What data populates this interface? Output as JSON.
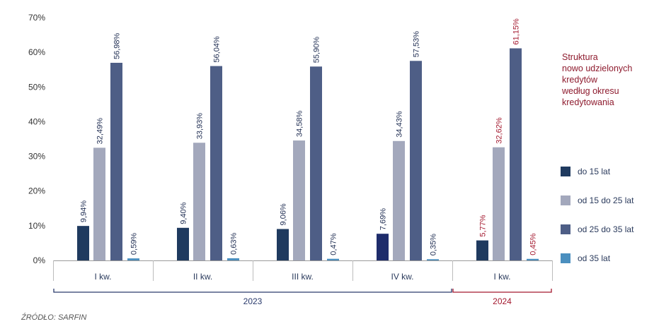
{
  "chart_data": {
    "type": "bar",
    "title_lines": [
      "Struktura",
      "nowo udzielonych",
      "kredytów",
      "według okresu",
      "kredytowania"
    ],
    "categories": [
      "I kw.",
      "II kw.",
      "III kw.",
      "IV kw.",
      "I kw."
    ],
    "year_groups": [
      {
        "label": "2023",
        "from": 0,
        "to": 3,
        "color": "#2a3a6c"
      },
      {
        "label": "2024",
        "from": 4,
        "to": 4,
        "color": "#a3182e"
      }
    ],
    "ylim": [
      0,
      70
    ],
    "yticks": [
      0,
      10,
      20,
      30,
      40,
      50,
      60,
      70
    ],
    "ytick_labels": [
      "0%",
      "10%",
      "20%",
      "30%",
      "40%",
      "50%",
      "60%",
      "70%"
    ],
    "grid": false,
    "legend_position": "right",
    "series": [
      {
        "name": "do 15 lat",
        "color": "#1f3a5f",
        "values": [
          9.94,
          9.4,
          9.06,
          7.69,
          5.77
        ],
        "labels": [
          "9,94%",
          "9,40%",
          "9,06%",
          "7,69%",
          "5,77%"
        ]
      },
      {
        "name": "od 15 do 25 lat",
        "color": "#a3a8bc",
        "values": [
          32.49,
          33.93,
          34.58,
          34.43,
          32.62
        ],
        "labels": [
          "32,49%",
          "33,93%",
          "34,58%",
          "34,43%",
          "32,62%"
        ]
      },
      {
        "name": "od 25 do 35 lat",
        "color": "#4e5e86",
        "values": [
          56.98,
          56.04,
          55.9,
          57.53,
          61.15
        ],
        "labels": [
          "56,98%",
          "56,04%",
          "55,90%",
          "57,53%",
          "61,15%"
        ]
      },
      {
        "name": "od 35 lat",
        "color": "#4b8fbf",
        "values": [
          0.59,
          0.63,
          0.47,
          0.35,
          0.45
        ],
        "labels": [
          "0,59%",
          "0,63%",
          "0,47%",
          "0,35%",
          "0,45%"
        ]
      }
    ],
    "label_colors": {
      "default": "#1f2d52",
      "highlight": "#a3182e"
    },
    "highlight_category_index": 4,
    "iv_first_bar_color": "#1e2c6b"
  },
  "source": "ŹRÓDŁO: SARFIN"
}
